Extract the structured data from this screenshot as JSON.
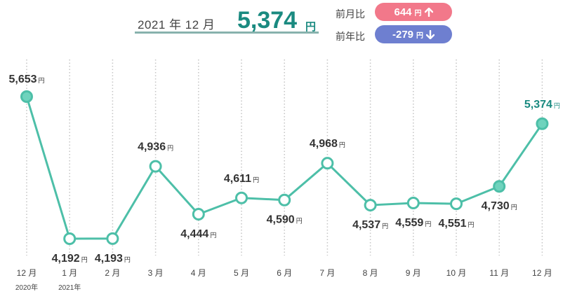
{
  "header": {
    "period_label": "2021 年 12 月",
    "current_value": "5,374",
    "current_unit": "円"
  },
  "comparisons": [
    {
      "label": "前月比",
      "value": "644",
      "unit": "円",
      "direction": "up",
      "color": "#f2788a"
    },
    {
      "label": "前年比",
      "value": "-279",
      "unit": "円",
      "direction": "down",
      "color": "#6e7fd0"
    }
  ],
  "colors": {
    "line": "#4dbfa8",
    "accent": "#1a8a80"
  },
  "chart_data": {
    "type": "line",
    "categories": [
      "12 月",
      "1 月",
      "2 月",
      "3 月",
      "4 月",
      "5 月",
      "6 月",
      "7 月",
      "8 月",
      "9 月",
      "10 月",
      "11 月",
      "12 月"
    ],
    "year_labels": [
      "2020年",
      "2021年",
      "",
      "",
      "",
      "",
      "",
      "",
      "",
      "",
      "",
      "",
      ""
    ],
    "values": [
      5653,
      4192,
      4193,
      4936,
      4444,
      4611,
      4590,
      4968,
      4537,
      4559,
      4551,
      4730,
      5374
    ],
    "value_labels": [
      "5,653",
      "4,192",
      "4,193",
      "4,936",
      "4,444",
      "4,611",
      "4,590",
      "4,968",
      "4,537",
      "4,559",
      "4,551",
      "4,730",
      "5,374"
    ],
    "unit": "円",
    "label_positions": [
      "above",
      "below",
      "below",
      "above",
      "below",
      "above",
      "below",
      "above",
      "below",
      "below",
      "below",
      "below",
      "above"
    ],
    "highlight_index": 12,
    "grid": "vertical-dotted",
    "ylim": [
      4000,
      5900
    ]
  }
}
